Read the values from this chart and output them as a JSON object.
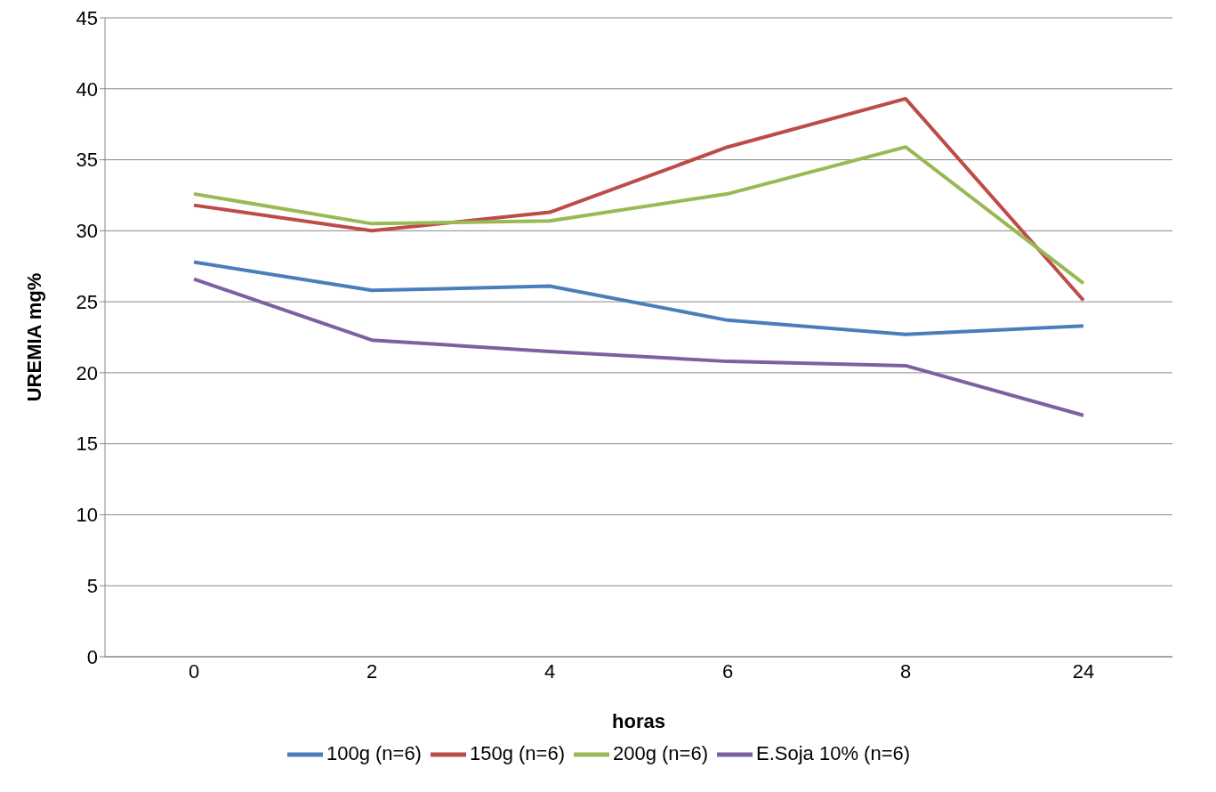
{
  "chart_data": {
    "type": "line",
    "xlabel": "horas",
    "ylabel": "UREMIA mg%",
    "categories": [
      "0",
      "2",
      "4",
      "6",
      "8",
      "24"
    ],
    "series": [
      {
        "name": "100g (n=6)",
        "color": "#4a7ebb",
        "values": [
          27.8,
          25.8,
          26.1,
          23.7,
          22.7,
          23.3
        ]
      },
      {
        "name": "150g (n=6)",
        "color": "#be4b48",
        "values": [
          31.8,
          30.0,
          31.3,
          35.9,
          39.3,
          25.1
        ]
      },
      {
        "name": "200g (n=6)",
        "color": "#98b954",
        "values": [
          32.6,
          30.5,
          30.7,
          32.6,
          35.9,
          26.3
        ]
      },
      {
        "name": "E.Soja 10% (n=6)",
        "color": "#7d60a0",
        "values": [
          26.6,
          22.3,
          21.5,
          20.8,
          20.5,
          17.0
        ]
      }
    ],
    "ylim": [
      0,
      45
    ],
    "yticks": [
      0,
      5,
      10,
      15,
      20,
      25,
      30,
      35,
      40,
      45
    ],
    "grid": "y",
    "legend": "bottom",
    "marker": "none",
    "line_style": "solid"
  }
}
